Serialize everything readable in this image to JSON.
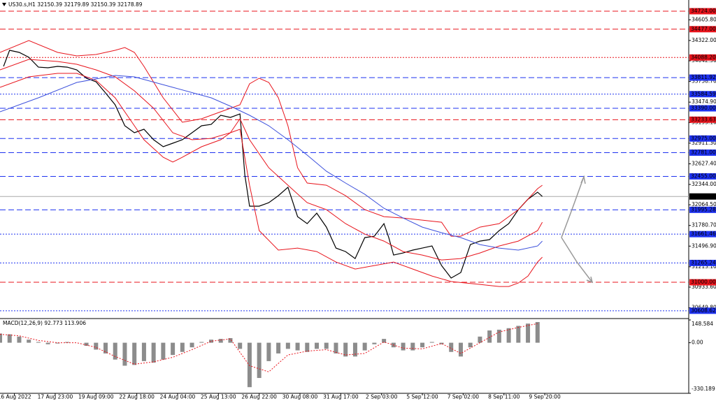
{
  "chart_data": [
    {
      "type": "line",
      "title": "US30.s,H1  32150.39 32179.89 32150.39 32178.89",
      "xlim": [
        0,
        574
      ],
      "ylim": [
        30511,
        34878
      ],
      "yticks": [
        {
          "value": 34605.8,
          "label": "34605.80"
        },
        {
          "value": 34322,
          "label": "34322.00"
        },
        {
          "value": 34042.5,
          "label": "34042.50"
        },
        {
          "value": 33758.7,
          "label": "33758.70"
        },
        {
          "value": 33474.9,
          "label": "33474.90"
        },
        {
          "value": 33193.1,
          "label": "33193.10"
        },
        {
          "value": 32911.3,
          "label": "32911.30"
        },
        {
          "value": 32627.4,
          "label": "32627.40"
        },
        {
          "value": 32344,
          "label": "32344.00"
        },
        {
          "value": 32064.5,
          "label": "32064.50"
        },
        {
          "value": 31780.7,
          "label": "31780.70"
        },
        {
          "value": 31496.9,
          "label": "31496.90"
        },
        {
          "value": 31213.1,
          "label": "31213.10"
        },
        {
          "value": 30933.6,
          "label": "30933.60"
        },
        {
          "value": 30649.8,
          "label": "30649.80"
        }
      ],
      "series": [
        {
          "color": "#000000",
          "x": [
            3,
            8,
            16,
            24,
            32,
            40,
            48,
            56,
            64,
            72,
            80,
            88,
            96,
            104,
            112,
            120,
            128,
            136,
            144,
            152,
            160,
            168,
            176,
            184,
            192,
            200,
            204,
            208,
            216,
            224,
            232,
            240,
            248,
            256,
            264,
            272,
            280,
            288,
            296,
            304,
            312,
            320,
            324,
            328,
            336,
            344,
            352,
            360,
            368,
            376,
            384,
            392,
            400,
            408,
            416,
            424,
            432,
            440,
            448,
            452
          ],
          "values": [
            33966,
            34187,
            34158,
            34091,
            33956,
            33947,
            33966,
            33956,
            33918,
            33803,
            33755,
            33601,
            33438,
            33150,
            33054,
            33102,
            32958,
            32862,
            32910,
            32958,
            33054,
            33150,
            33169,
            33294,
            33265,
            33313,
            32478,
            32046,
            32046,
            32094,
            32190,
            32305,
            31902,
            31806,
            31950,
            31758,
            31470,
            31422,
            31326,
            31614,
            31633,
            31806,
            31614,
            31374,
            31403,
            31442,
            31470,
            31499,
            31230,
            31058,
            31134,
            31518,
            31566,
            31586,
            31710,
            31806,
            31998,
            32142,
            32238,
            32179
          ]
        },
        {
          "color": "#e8141c",
          "x": [
            0,
            24,
            48,
            64,
            80,
            96,
            104,
            112,
            120,
            136,
            152,
            168,
            184,
            192,
            200,
            208,
            216,
            224,
            232,
            240,
            248,
            256,
            272,
            288,
            304,
            320,
            336,
            352,
            368,
            376,
            384,
            400,
            416,
            432,
            448,
            452
          ],
          "values": [
            34158,
            34321,
            34158,
            34110,
            34129,
            34187,
            34225,
            34158,
            33966,
            33534,
            33198,
            33246,
            33342,
            33390,
            33438,
            33726,
            33803,
            33745,
            33534,
            33150,
            32574,
            32363,
            32334,
            32190,
            31998,
            31902,
            31883,
            31854,
            31825,
            31633,
            31633,
            31758,
            31806,
            31998,
            32286,
            32334
          ]
        },
        {
          "color": "#e8141c",
          "x": [
            0,
            24,
            48,
            64,
            80,
            96,
            112,
            120,
            136,
            144,
            152,
            168,
            184,
            192,
            200,
            208,
            216,
            232,
            248,
            264,
            280,
            296,
            312,
            328,
            344,
            360,
            376,
            400,
            416,
            424,
            432,
            440,
            448,
            452
          ],
          "values": [
            33678,
            33822,
            33870,
            33870,
            33774,
            33534,
            33150,
            32958,
            32718,
            32651,
            32718,
            32862,
            32958,
            33054,
            33102,
            32334,
            31710,
            31442,
            31470,
            31422,
            31278,
            31182,
            31230,
            31278,
            31182,
            31086,
            31010,
            30971,
            30942,
            30942,
            30990,
            31086,
            31278,
            31345
          ]
        },
        {
          "color": "#e8141c",
          "x": [
            0,
            24,
            48,
            64,
            80,
            96,
            112,
            128,
            144,
            160,
            176,
            192,
            200,
            208,
            224,
            240,
            256,
            272,
            288,
            304,
            320,
            336,
            352,
            368,
            384,
            400,
            416,
            432,
            448,
            452
          ],
          "values": [
            33918,
            34062,
            34033,
            33995,
            33918,
            33822,
            33630,
            33390,
            33054,
            32958,
            32977,
            33054,
            33246,
            32958,
            32574,
            32334,
            32094,
            31998,
            31806,
            31662,
            31566,
            31422,
            31374,
            31307,
            31326,
            31403,
            31499,
            31566,
            31710,
            31825
          ]
        },
        {
          "color": "#3c50dc",
          "x": [
            0,
            32,
            64,
            96,
            112,
            144,
            176,
            192,
            208,
            224,
            240,
            256,
            272,
            288,
            304,
            320,
            336,
            352,
            368,
            384,
            400,
            416,
            432,
            448,
            452
          ],
          "values": [
            33342,
            33534,
            33745,
            33841,
            33822,
            33678,
            33534,
            33419,
            33294,
            33150,
            32958,
            32747,
            32526,
            32363,
            32209,
            32017,
            31883,
            31758,
            31681,
            31614,
            31518,
            31470,
            31442,
            31499,
            31566
          ]
        }
      ],
      "levels": [
        {
          "value": 34724,
          "label": "34724.00",
          "color": "#e8141c",
          "dash": "dashed"
        },
        {
          "value": 34477,
          "label": "34477.00",
          "color": "#e8141c",
          "dash": "dashed"
        },
        {
          "value": 34088.2,
          "label": "34088.20",
          "color": "#e8141c",
          "dash": "dotted"
        },
        {
          "value": 33811.92,
          "label": "33811.92",
          "color": "#1e32f0",
          "dash": "dashed"
        },
        {
          "value": 33584.59,
          "label": "33584.59",
          "color": "#1e32f0",
          "dash": "dotted"
        },
        {
          "value": 33390,
          "label": "33390.00",
          "color": "#1e32f0",
          "dash": "dashed"
        },
        {
          "value": 33233.63,
          "label": "33233.63",
          "color": "#e8141c",
          "dash": "dashed"
        },
        {
          "value": 32975,
          "label": "32975.00",
          "color": "#1e32f0",
          "dash": "dashed"
        },
        {
          "value": 32781,
          "label": "32781.00",
          "color": "#1e32f0",
          "dash": "dashed"
        },
        {
          "value": 32455,
          "label": "32455.00",
          "color": "#1e32f0",
          "dash": "dashed"
        },
        {
          "value": 32178.89,
          "label": "32178.89",
          "color": "#000000",
          "dash": "solid"
        },
        {
          "value": 31995.28,
          "label": "31995.28",
          "color": "#1e32f0",
          "dash": "dashed"
        },
        {
          "value": 31661.46,
          "label": "31661.46",
          "color": "#1e32f0",
          "dash": "dotted"
        },
        {
          "value": 31265.24,
          "label": "31265.24",
          "color": "#1e32f0",
          "dash": "dotted"
        },
        {
          "value": 31000,
          "label": "31000.00",
          "color": "#e8141c",
          "dash": "dashed"
        },
        {
          "value": 30608.62,
          "label": "30608.62",
          "color": "#1e32f0",
          "dash": "dotted"
        }
      ]
    },
    {
      "type": "bar",
      "title": "MACD(12,26,9) 92.773 113.906",
      "color": "#8c8c8c",
      "xlim": [
        0,
        574
      ],
      "ylim": [
        -330.189,
        148.584
      ],
      "yticks": [
        148.584,
        {
          "value": 0,
          "label": "0.00"
        },
        -330.189
      ],
      "xticks": [
        {
          "value": 12,
          "label": "16 Aug 2022"
        },
        {
          "value": 46,
          "label": "17 Aug 23:00"
        },
        {
          "value": 80,
          "label": "19 Aug 09:00"
        },
        {
          "value": 114,
          "label": "22 Aug 18:00"
        },
        {
          "value": 148,
          "label": "24 Aug 04:00"
        },
        {
          "value": 182,
          "label": "25 Aug 13:00"
        },
        {
          "value": 216,
          "label": "26 Aug 22:00"
        },
        {
          "value": 250,
          "label": "30 Aug 08:00"
        },
        {
          "value": 284,
          "label": "31 Aug 17:00"
        },
        {
          "value": 318,
          "label": "2 Sep 03:00"
        },
        {
          "value": 352,
          "label": "5 Sep 12:00"
        },
        {
          "value": 386,
          "label": "7 Sep 02:00"
        },
        {
          "value": 420,
          "label": "8 Sep 11:00"
        },
        {
          "value": 454,
          "label": "9 Sep 20:00"
        }
      ],
      "x": [
        0,
        8,
        16,
        24,
        32,
        40,
        48,
        56,
        64,
        72,
        80,
        88,
        96,
        104,
        112,
        120,
        128,
        136,
        144,
        152,
        160,
        168,
        176,
        184,
        192,
        200,
        208,
        216,
        224,
        232,
        240,
        248,
        256,
        264,
        272,
        280,
        288,
        296,
        304,
        312,
        320,
        328,
        336,
        344,
        352,
        360,
        368,
        376,
        384,
        392,
        400,
        408,
        416,
        424,
        432,
        440,
        448
      ],
      "values": [
        60,
        55,
        40,
        20,
        5,
        -10,
        -5,
        5,
        0,
        -20,
        -45,
        -70,
        -110,
        -150,
        -145,
        -120,
        -130,
        -110,
        -80,
        -60,
        -30,
        5,
        20,
        25,
        30,
        -40,
        -290,
        -230,
        -120,
        -70,
        -40,
        -50,
        -60,
        -40,
        -40,
        -70,
        -90,
        -90,
        -50,
        -10,
        25,
        -30,
        -50,
        -50,
        -30,
        5,
        -10,
        -60,
        -90,
        -30,
        40,
        80,
        85,
        95,
        110,
        125,
        135
      ],
      "signal": {
        "color": "#e8141c",
        "x": [
          0,
          16,
          32,
          48,
          64,
          80,
          96,
          112,
          128,
          144,
          160,
          176,
          192,
          208,
          224,
          240,
          256,
          272,
          288,
          304,
          320,
          336,
          352,
          368,
          384,
          400,
          416,
          432,
          448
        ],
        "values": [
          55,
          45,
          15,
          0,
          0,
          -30,
          -90,
          -140,
          -125,
          -95,
          -45,
          10,
          25,
          -150,
          -190,
          -80,
          -55,
          -45,
          -80,
          -70,
          5,
          -35,
          -40,
          -5,
          -70,
          0,
          70,
          100,
          125
        ]
      }
    }
  ]
}
